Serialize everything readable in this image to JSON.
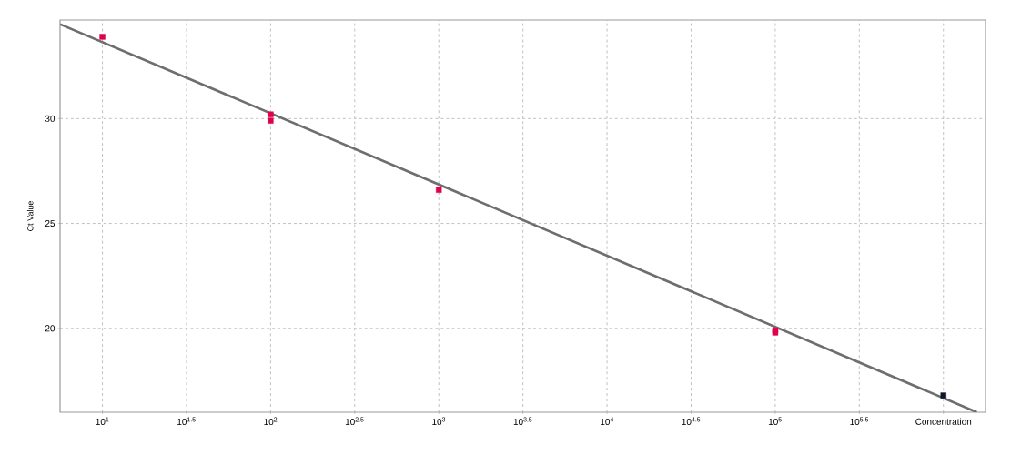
{
  "chart_data": {
    "type": "scatter",
    "xlabel": "Concentration",
    "ylabel": "Ct Value",
    "log": "x",
    "grid": true,
    "marker": "square",
    "xlim": [
      5.6,
      1780000
    ],
    "ylim": [
      16,
      34.7
    ],
    "xticks": [
      {
        "value": 10,
        "label": "10$^{1}$"
      },
      {
        "value": 31.62,
        "label": "10$^{1.5}$"
      },
      {
        "value": 100,
        "label": "10$^{2}$"
      },
      {
        "value": 316.2,
        "label": "10$^{2.5}$"
      },
      {
        "value": 1000,
        "label": "10$^{3}$"
      },
      {
        "value": 3162,
        "label": "10$^{3.5}$"
      },
      {
        "value": 10000,
        "label": "10$^{4}$"
      },
      {
        "value": 31620,
        "label": "10$^{4.5}$"
      },
      {
        "value": 100000,
        "label": "10$^{5}$"
      },
      {
        "value": 316200,
        "label": "10$^{5.5}$"
      },
      {
        "value": 1000000,
        "label": null
      }
    ],
    "yticks": [
      20,
      25,
      30
    ],
    "series": [
      {
        "type": "line",
        "marker": "none",
        "color": "#6e6e6e",
        "x": [
          5.6,
          1580000
        ],
        "values": [
          34.5,
          16.0
        ]
      },
      {
        "color": "#e0004d",
        "x": [
          10,
          100,
          100,
          1000,
          100000,
          100000
        ],
        "values": [
          33.9,
          30.2,
          29.9,
          26.6,
          19.9,
          19.8
        ]
      },
      {
        "color": "#101828",
        "x": [
          1000000
        ],
        "values": [
          16.8
        ]
      }
    ]
  }
}
